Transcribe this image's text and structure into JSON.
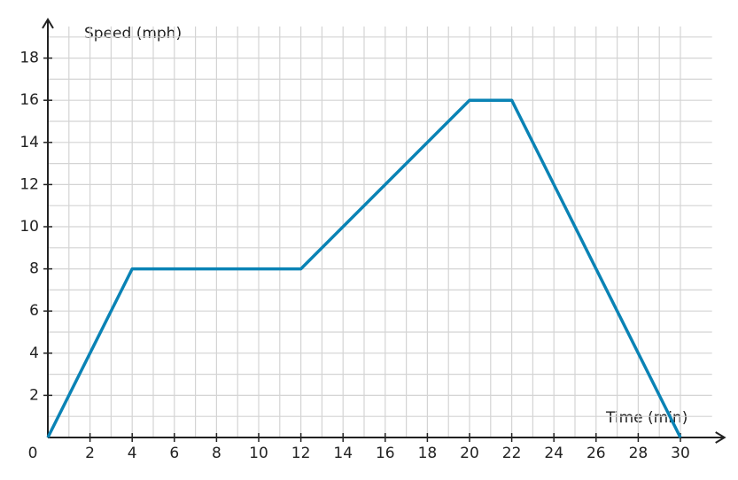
{
  "chart_data": {
    "type": "line",
    "x_label": "Time (min)",
    "y_label": "Speed (mph)",
    "x": [
      0,
      4,
      12,
      20,
      22,
      30
    ],
    "series": [
      {
        "color": "#0a83b5",
        "values": [
          0,
          8,
          8,
          16,
          16,
          0
        ]
      }
    ],
    "xlim": [
      0,
      31.5
    ],
    "ylim": [
      0,
      19.5
    ],
    "xticks": [
      0,
      2,
      4,
      6,
      8,
      10,
      12,
      14,
      16,
      18,
      20,
      22,
      24,
      26,
      28,
      30
    ],
    "yticks": [
      2,
      4,
      6,
      8,
      10,
      12,
      14,
      16,
      18
    ],
    "grid": true
  }
}
